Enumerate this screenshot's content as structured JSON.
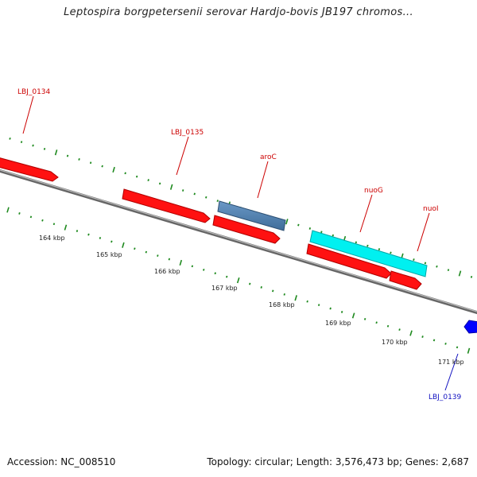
{
  "title": "Leptospira borgpetersenii serovar Hardjo-bovis JB197 chromos...",
  "footer": {
    "accession": "Accession: NC_008510",
    "summary": "Topology: circular; Length: 3,576,473 bp; Genes: 2,687"
  },
  "colors": {
    "forward_gene": "#ff0000",
    "reverse_gene": "#ff0000",
    "aroC": "#4f7fae",
    "nuoG": "#00eeee",
    "blue_gene": "#0000ff",
    "backbone": "#888888",
    "ticks": "#1f8a1f",
    "red_label": "#cc0000",
    "blue_label": "#1010c0"
  },
  "axis": {
    "unit": "kbp",
    "ticks_kbp": [
      164,
      165,
      166,
      167,
      168,
      169,
      170,
      171
    ],
    "tick_labels": [
      "164 kbp",
      "165 kbp",
      "166 kbp",
      "167 kbp",
      "168 kbp",
      "169 kbp",
      "170 kbp",
      "171 kbp"
    ]
  },
  "genes": [
    {
      "id": "LBJ_0134",
      "label": "LBJ_0134",
      "strand": "+",
      "start_kbp": 162.9,
      "end_kbp": 163.4,
      "color_key": "forward_gene"
    },
    {
      "id": "LBJ_0135",
      "label": "LBJ_0135",
      "strand": "+",
      "start_kbp": 164.7,
      "end_kbp": 166.1,
      "color_key": "forward_gene"
    },
    {
      "id": "aroC",
      "label": "aroC",
      "strand": "+",
      "start_kbp": 166.5,
      "end_kbp": 167.6,
      "color_key": "aroC"
    },
    {
      "id": "aroC_cds",
      "label": "",
      "strand": "+",
      "start_kbp": 166.5,
      "end_kbp": 167.6,
      "color_key": "forward_gene"
    },
    {
      "id": "nuoG",
      "label": "nuoG",
      "strand": "+",
      "start_kbp": 168.1,
      "end_kbp": 170.0,
      "color_key": "nuoG"
    },
    {
      "id": "nuoG_cds",
      "label": "",
      "strand": "+",
      "start_kbp": 168.1,
      "end_kbp": 169.5,
      "color_key": "forward_gene"
    },
    {
      "id": "nuoI",
      "label": "nuoI",
      "strand": "+",
      "start_kbp": 169.5,
      "end_kbp": 170.0,
      "color_key": "forward_gene"
    },
    {
      "id": "LBJ_0139",
      "label": "LBJ_0139",
      "strand": "-",
      "start_kbp": 170.8,
      "end_kbp": 171.0,
      "color_key": "blue_gene"
    }
  ]
}
